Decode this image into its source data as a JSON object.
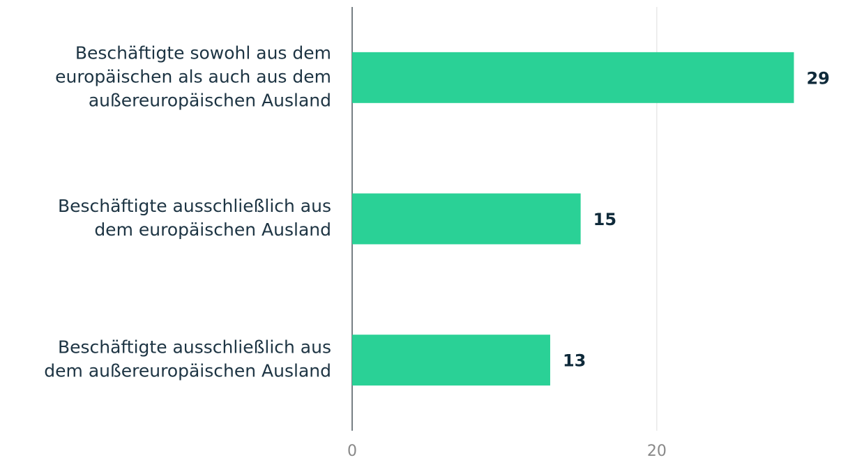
{
  "chart_data": {
    "type": "bar",
    "orientation": "horizontal",
    "categories": [
      "Beschäftigte sowohl aus dem\neuropäischen als auch aus dem\naußereuropäischen Ausland",
      "Beschäftigte ausschließlich aus\ndem europäischen Ausland",
      "Beschäftigte ausschließlich aus\ndem außereuropäischen Ausland"
    ],
    "values": [
      29,
      15,
      13
    ],
    "color": "#2ad196",
    "xlim": [
      0,
      32
    ],
    "xticks": [
      0,
      20
    ],
    "grid": true
  }
}
